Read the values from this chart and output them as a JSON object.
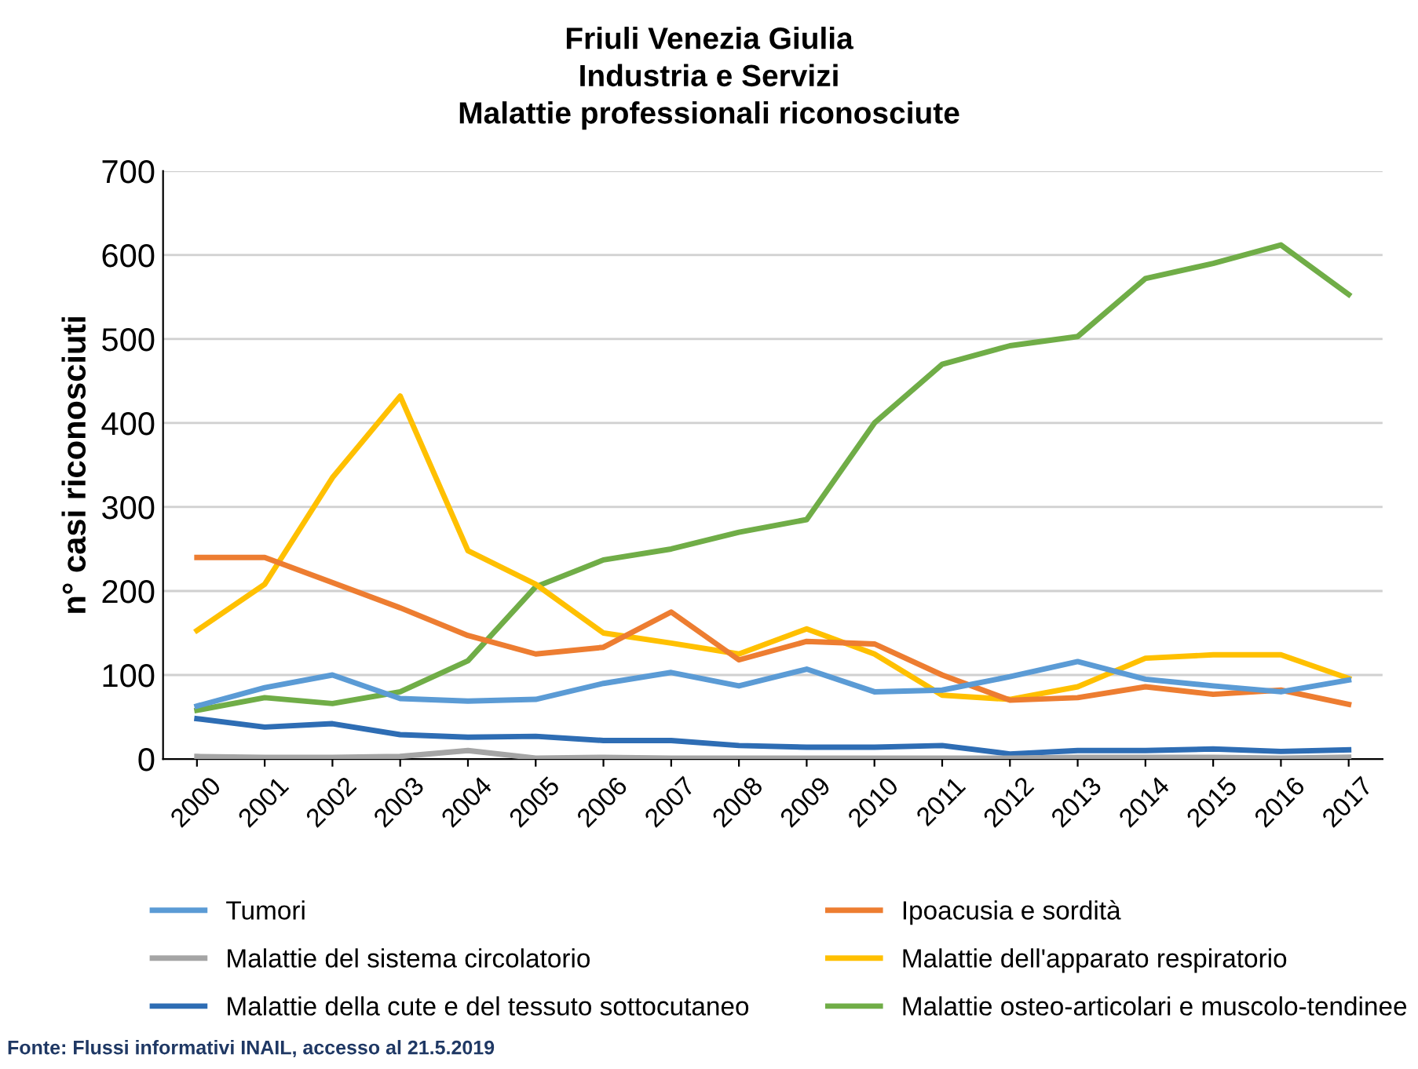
{
  "chart_data": {
    "type": "line",
    "title": "Friuli Venezia Giulia\nIndustria e Servizi\nMalattie professionali riconosciute",
    "ylabel": "n° casi riconosciuti",
    "categories": [
      "2000",
      "2001",
      "2002",
      "2003",
      "2004",
      "2005",
      "2006",
      "2007",
      "2008",
      "2009",
      "2010",
      "2011",
      "2012",
      "2013",
      "2014",
      "2015",
      "2016",
      "2017"
    ],
    "series": [
      {
        "name": "Tumori",
        "color": "#5b9bd5",
        "values": [
          63,
          85,
          100,
          72,
          69,
          71,
          90,
          103,
          87,
          107,
          80,
          82,
          98,
          116,
          95,
          87,
          80,
          94
        ]
      },
      {
        "name": "Ipoacusia e sordità",
        "color": "#ed7d31",
        "values": [
          240,
          240,
          210,
          180,
          147,
          125,
          133,
          175,
          118,
          140,
          137,
          100,
          70,
          73,
          86,
          77,
          82,
          65
        ]
      },
      {
        "name": "Malattie del sistema circolatorio",
        "color": "#a5a5a5",
        "values": [
          3,
          2,
          2,
          3,
          10,
          1,
          2,
          1,
          1,
          1,
          1,
          1,
          1,
          2,
          2,
          2,
          1,
          2
        ]
      },
      {
        "name": "Malattie dell'apparato respiratorio",
        "color": "#ffc000",
        "values": [
          153,
          208,
          335,
          432,
          248,
          208,
          150,
          138,
          125,
          155,
          125,
          76,
          71,
          86,
          120,
          124,
          124,
          96
        ]
      },
      {
        "name": "Malattie della cute e del tessuto sottocutaneo",
        "color": "#2e6db4",
        "values": [
          48,
          38,
          42,
          29,
          26,
          27,
          22,
          22,
          16,
          14,
          14,
          16,
          6,
          10,
          10,
          12,
          9,
          11
        ]
      },
      {
        "name": "Malattie osteo-articolari e muscolo-tendinee",
        "color": "#70ad47",
        "values": [
          58,
          73,
          66,
          80,
          117,
          205,
          237,
          250,
          270,
          285,
          400,
          470,
          492,
          503,
          572,
          590,
          612,
          553
        ]
      }
    ],
    "ylim": [
      0,
      700
    ],
    "yticks": [
      0,
      100,
      200,
      300,
      400,
      500,
      600,
      700
    ],
    "grid": "y",
    "legend": "bottom",
    "marker": "none",
    "line_style": "solid",
    "annotations": [
      "Fonte: Flussi informativi INAIL, accesso al 21.5.2019"
    ]
  }
}
